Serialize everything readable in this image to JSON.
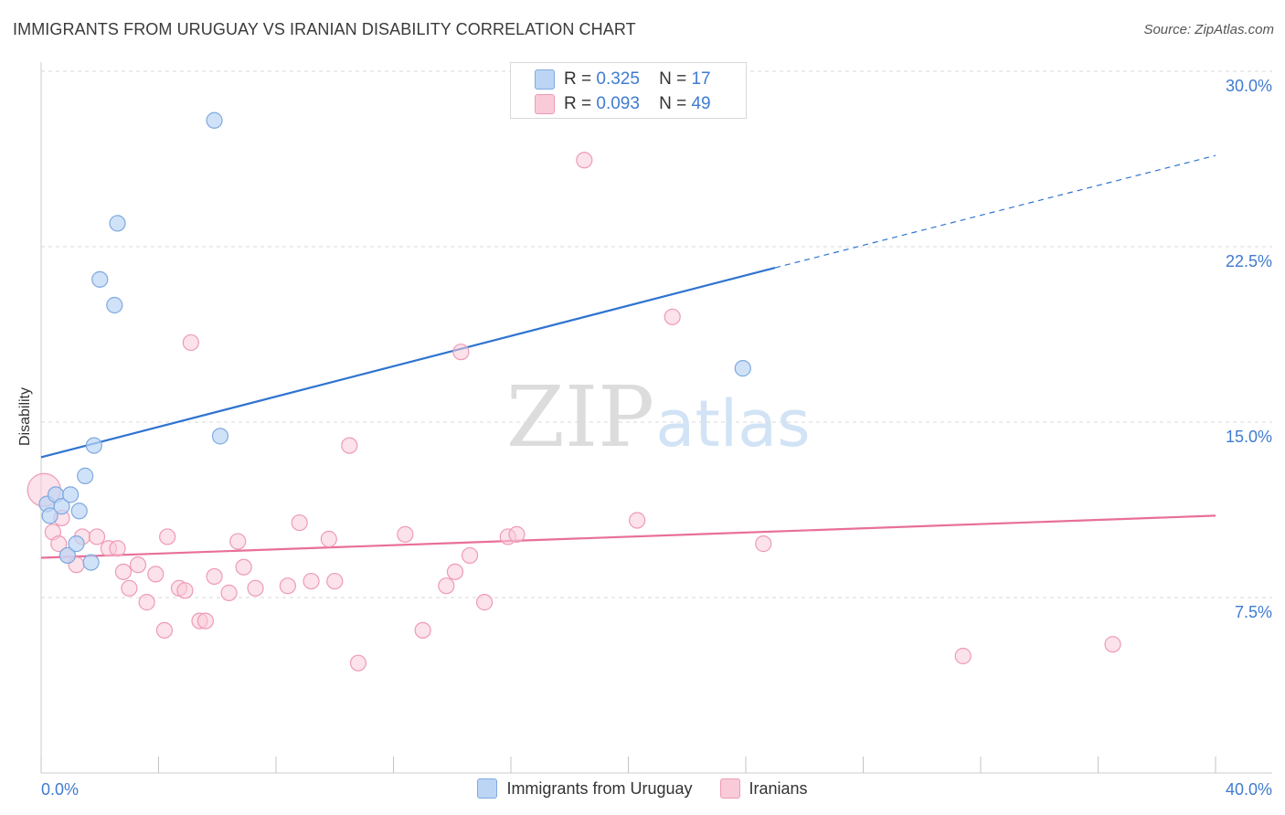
{
  "header": {
    "title": "IMMIGRANTS FROM URUGUAY VS IRANIAN DISABILITY CORRELATION CHART",
    "source": "Source: ZipAtlas.com"
  },
  "watermark": {
    "zip": "ZIP",
    "atlas": "atlas"
  },
  "colors": {
    "blue_fill": "#bcd5f5",
    "blue_stroke": "#7fa9df",
    "blue_line": "#2f74d0",
    "pink_fill": "#f9cbd8",
    "pink_stroke": "#ee9bb4",
    "pink_line": "#e86f9a",
    "axis_text": "#3f7bd1",
    "grid": "#d9d9d9"
  },
  "legend_top": {
    "rows": [
      {
        "r_label": "R =",
        "r_value": "0.325",
        "n_label": "N =",
        "n_value": "17"
      },
      {
        "r_label": "R =",
        "r_value": "0.093",
        "n_label": "N =",
        "n_value": "49"
      }
    ]
  },
  "legend_bottom": {
    "items": [
      {
        "label": "Immigrants from Uruguay"
      },
      {
        "label": "Iranians"
      }
    ]
  },
  "chart_data": {
    "type": "scatter",
    "title": "IMMIGRANTS FROM URUGUAY VS IRANIAN DISABILITY CORRELATION CHART",
    "xlabel": "",
    "ylabel": "Disability",
    "xlim": [
      0,
      40
    ],
    "ylim": [
      0,
      31.5
    ],
    "x_tick_labels": [
      "0.0%",
      "40.0%"
    ],
    "y_ticks": [
      7.5,
      15.0,
      22.5,
      30.0
    ],
    "y_tick_labels": [
      "7.5%",
      "15.0%",
      "22.5%",
      "30.0%"
    ],
    "grid": true,
    "legend": "top-center",
    "series": [
      {
        "name": "Immigrants from Uruguay",
        "color": "#7fa9df",
        "points": [
          [
            0.2,
            11.5
          ],
          [
            0.3,
            11.0
          ],
          [
            0.5,
            11.9
          ],
          [
            0.7,
            11.4
          ],
          [
            0.9,
            9.3
          ],
          [
            1.0,
            11.9
          ],
          [
            1.2,
            9.8
          ],
          [
            1.3,
            11.2
          ],
          [
            1.5,
            12.7
          ],
          [
            1.7,
            9.0
          ],
          [
            1.8,
            14.0
          ],
          [
            2.0,
            21.1
          ],
          [
            2.5,
            20.0
          ],
          [
            2.6,
            23.5
          ],
          [
            5.9,
            27.9
          ],
          [
            6.1,
            14.4
          ],
          [
            23.9,
            17.3
          ]
        ],
        "trend": {
          "x": [
            0,
            25
          ],
          "y": [
            13.5,
            21.6
          ],
          "dashed_to": [
            40,
            26.4
          ]
        }
      },
      {
        "name": "Iranians",
        "color": "#ee9bb4",
        "points": [
          [
            0.1,
            12.1
          ],
          [
            0.4,
            10.3
          ],
          [
            0.6,
            9.8
          ],
          [
            0.9,
            9.3
          ],
          [
            1.2,
            8.9
          ],
          [
            1.4,
            10.1
          ],
          [
            1.9,
            10.1
          ],
          [
            2.3,
            9.6
          ],
          [
            2.6,
            9.6
          ],
          [
            2.8,
            8.6
          ],
          [
            3.0,
            7.9
          ],
          [
            3.3,
            8.9
          ],
          [
            3.6,
            7.3
          ],
          [
            3.9,
            8.5
          ],
          [
            4.2,
            6.1
          ],
          [
            4.3,
            10.1
          ],
          [
            4.7,
            7.9
          ],
          [
            4.9,
            7.8
          ],
          [
            5.1,
            18.4
          ],
          [
            5.4,
            6.5
          ],
          [
            5.6,
            6.5
          ],
          [
            5.9,
            8.4
          ],
          [
            6.4,
            7.7
          ],
          [
            6.7,
            9.9
          ],
          [
            6.9,
            8.8
          ],
          [
            7.3,
            7.9
          ],
          [
            8.4,
            8.0
          ],
          [
            8.8,
            10.7
          ],
          [
            9.2,
            8.2
          ],
          [
            9.8,
            10.0
          ],
          [
            10.0,
            8.2
          ],
          [
            10.5,
            14.0
          ],
          [
            10.8,
            4.7
          ],
          [
            12.4,
            10.2
          ],
          [
            13.0,
            6.1
          ],
          [
            13.8,
            8.0
          ],
          [
            14.1,
            8.6
          ],
          [
            14.3,
            18.0
          ],
          [
            14.6,
            9.3
          ],
          [
            15.1,
            7.3
          ],
          [
            15.9,
            10.1
          ],
          [
            16.2,
            10.2
          ],
          [
            18.5,
            26.2
          ],
          [
            20.3,
            10.8
          ],
          [
            21.5,
            19.5
          ],
          [
            24.6,
            9.8
          ],
          [
            31.4,
            5.0
          ],
          [
            36.5,
            5.5
          ],
          [
            0.7,
            10.9
          ]
        ],
        "trend": {
          "x": [
            0,
            40
          ],
          "y": [
            9.2,
            11.0
          ]
        }
      }
    ]
  },
  "axes": {
    "ylabel": "Disability",
    "x_left": "0.0%",
    "x_right": "40.0%",
    "y_labels": [
      "7.5%",
      "15.0%",
      "22.5%",
      "30.0%"
    ]
  }
}
